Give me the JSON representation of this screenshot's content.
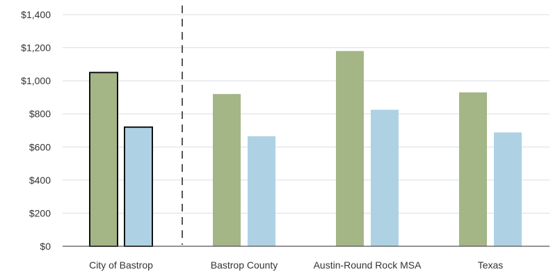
{
  "chart_data": {
    "type": "bar",
    "categories": [
      "City of Bastrop",
      "Bastrop County",
      "Austin-Round Rock MSA",
      "Texas"
    ],
    "series": [
      {
        "values": [
          1050,
          920,
          1180,
          930
        ],
        "color": "#a4b586"
      },
      {
        "values": [
          720,
          665,
          825,
          688
        ],
        "color": "#aed2e4"
      }
    ],
    "ylim": [
      0,
      1400
    ],
    "yticks": [
      0,
      200,
      400,
      600,
      800,
      1000,
      1200,
      1400
    ],
    "ytick_labels": [
      "$0",
      "$200",
      "$400",
      "$600",
      "$800",
      "$1,000",
      "$1,200",
      "$1,400"
    ],
    "grid": true,
    "highlighted_category": "City of Bastrop",
    "divider_after_category": "City of Bastrop",
    "title": "",
    "xlabel": "",
    "ylabel": ""
  }
}
